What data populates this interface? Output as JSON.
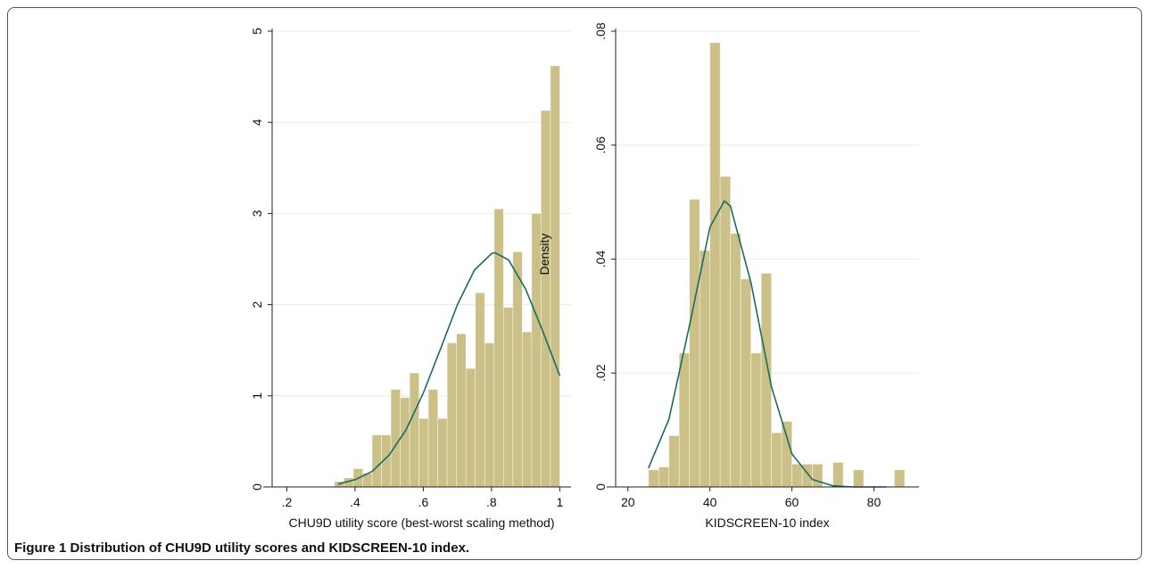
{
  "chart_data": [
    {
      "type": "histogram",
      "xlabel": "CHU9D utility score (best-worst scaling method)",
      "ylabel": "Density",
      "bins": [
        0.34,
        0.3675,
        0.395,
        0.4225,
        0.45,
        0.4775,
        0.505,
        0.5325,
        0.56,
        0.5875,
        0.615,
        0.6425,
        0.67,
        0.6975,
        0.725,
        0.7525,
        0.78,
        0.8075,
        0.835,
        0.8625,
        0.89,
        0.9175,
        0.945,
        0.9725,
        1.0
      ],
      "values": [
        0.06,
        0.1,
        0.2,
        0.15,
        0.57,
        0.57,
        1.07,
        0.98,
        1.25,
        0.75,
        1.07,
        0.75,
        1.58,
        1.68,
        1.3,
        2.13,
        1.58,
        3.05,
        1.97,
        2.58,
        1.7,
        3.0,
        4.13,
        4.62
      ],
      "color": "#cbc188",
      "curve": {
        "x": [
          0.35,
          0.4,
          0.45,
          0.5,
          0.55,
          0.6,
          0.65,
          0.7,
          0.75,
          0.8,
          0.81,
          0.85,
          0.9,
          0.95,
          1.0
        ],
        "values": [
          0.03,
          0.08,
          0.17,
          0.35,
          0.63,
          1.03,
          1.51,
          2.0,
          2.38,
          2.56,
          2.57,
          2.49,
          2.17,
          1.71,
          1.22
        ],
        "color": "#1c6b62"
      },
      "xlim": [
        0.157,
        1.033
      ],
      "xticks": [
        {
          "value": 0.2,
          "label": ".2"
        },
        {
          "value": 0.4,
          "label": ".4"
        },
        {
          "value": 0.6,
          "label": ".6"
        },
        {
          "value": 0.8,
          "label": ".8"
        },
        1
      ],
      "ylim": [
        0,
        5
      ],
      "yticks": [
        0,
        1,
        2,
        3,
        4,
        5
      ],
      "grid": true
    },
    {
      "type": "histogram",
      "xlabel": "KIDSCREEN-10 index",
      "bins": [
        25,
        27.5,
        30,
        32.5,
        35,
        37.5,
        40,
        42.5,
        45,
        47.5,
        50,
        52.5,
        55,
        57.5,
        60,
        62.5,
        65,
        67.5,
        70,
        72.5,
        75,
        77.5,
        80,
        82.5,
        85,
        87.5
      ],
      "values": [
        0.003,
        0.0035,
        0.009,
        0.0235,
        0.0505,
        0.0415,
        0.078,
        0.0545,
        0.0445,
        0.0365,
        0.0235,
        0.0375,
        0.0095,
        0.0115,
        0.004,
        0.004,
        0.004,
        0,
        0.0043,
        0,
        0.003,
        0,
        0,
        0,
        0.003
      ],
      "color": "#cbc188",
      "curve": {
        "x": [
          25,
          30,
          35,
          40,
          43.5,
          45,
          50,
          55,
          60,
          65,
          70,
          75,
          80,
          83
        ],
        "values": [
          0.0033,
          0.0119,
          0.0283,
          0.0456,
          0.0502,
          0.0493,
          0.0359,
          0.0176,
          0.0058,
          0.0013,
          0.0002,
          0,
          0,
          0
        ],
        "color": "#1c6b62"
      },
      "xlim": [
        17,
        91
      ],
      "xticks": [
        20,
        40,
        60,
        80
      ],
      "ylim": [
        0,
        0.08
      ],
      "yticks": [
        0,
        {
          "value": 0.02,
          "label": ".02"
        },
        {
          "value": 0.04,
          "label": ".04"
        },
        {
          "value": 0.06,
          "label": ".06"
        },
        {
          "value": 0.08,
          "label": ".08"
        }
      ],
      "grid": true
    }
  ],
  "caption": "Figure 1 Distribution of CHU9D utility scores and KIDSCREEN-10 index."
}
